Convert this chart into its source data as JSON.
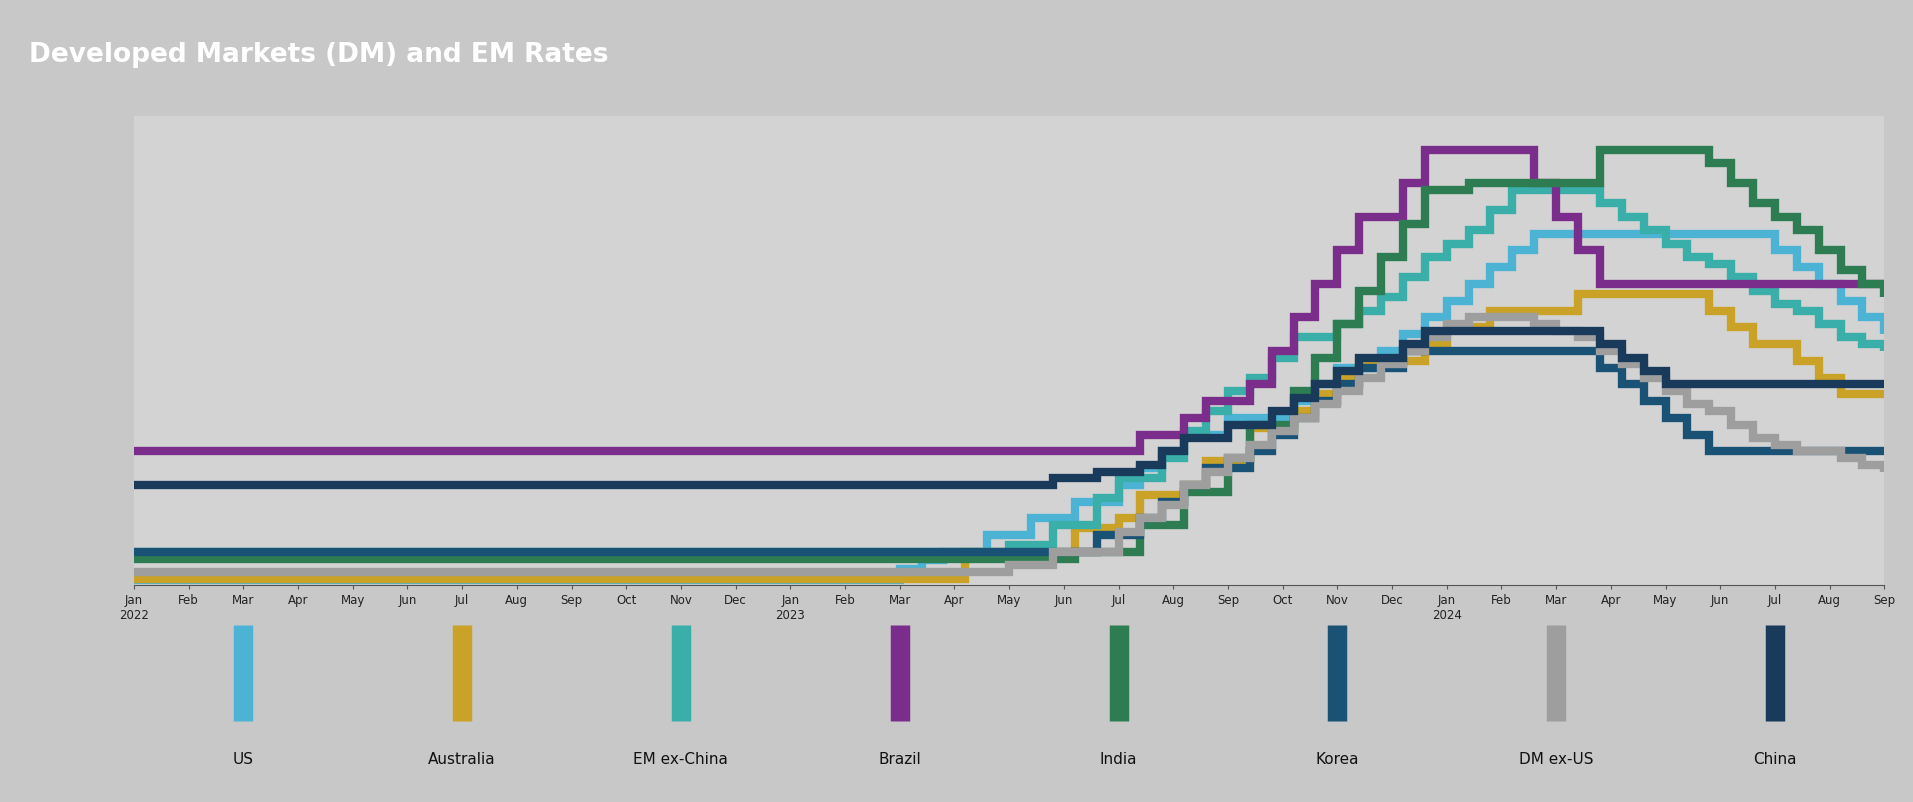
{
  "title": "Developed Markets (DM) and EM Rates",
  "bg_color": "#d3d3d3",
  "title_bg_color": "#1c1c1c",
  "title_color": "#ffffff",
  "fig_bg": "#c8c8c8",
  "series": [
    {
      "label": "US",
      "color": "#4db3d4",
      "linewidth": 6,
      "data_y": [
        0.08,
        0.08,
        0.08,
        0.08,
        0.08,
        0.08,
        0.08,
        0.08,
        0.08,
        0.08,
        0.08,
        0.08,
        0.08,
        0.08,
        0.08,
        0.08,
        0.08,
        0.08,
        0.08,
        0.08,
        0.08,
        0.08,
        0.08,
        0.08,
        0.08,
        0.08,
        0.08,
        0.08,
        0.08,
        0.08,
        0.08,
        0.08,
        0.08,
        0.08,
        0.08,
        0.25,
        0.38,
        0.5,
        0.5,
        0.75,
        0.75,
        1.0,
        1.0,
        1.25,
        1.25,
        1.5,
        1.75,
        2.0,
        2.25,
        2.25,
        2.5,
        2.5,
        2.5,
        2.75,
        3.0,
        3.25,
        3.25,
        3.5,
        3.75,
        4.0,
        4.25,
        4.5,
        4.75,
        5.0,
        5.25,
        5.25,
        5.25,
        5.25,
        5.25,
        5.25,
        5.25,
        5.25,
        5.25,
        5.25,
        5.25,
        5.0,
        4.75,
        4.5,
        4.25,
        4.0,
        3.75
      ]
    },
    {
      "label": "Australia",
      "color": "#c9a227",
      "linewidth": 6,
      "data_y": [
        0.1,
        0.1,
        0.1,
        0.1,
        0.1,
        0.1,
        0.1,
        0.1,
        0.1,
        0.1,
        0.1,
        0.1,
        0.1,
        0.1,
        0.1,
        0.1,
        0.1,
        0.1,
        0.1,
        0.1,
        0.1,
        0.1,
        0.1,
        0.1,
        0.1,
        0.1,
        0.1,
        0.1,
        0.1,
        0.1,
        0.1,
        0.1,
        0.1,
        0.1,
        0.1,
        0.1,
        0.1,
        0.1,
        0.5,
        0.5,
        0.5,
        0.5,
        0.5,
        0.85,
        0.85,
        1.0,
        1.35,
        1.35,
        1.5,
        1.85,
        1.85,
        2.35,
        2.35,
        2.6,
        2.85,
        3.1,
        3.35,
        3.35,
        3.35,
        3.6,
        3.85,
        3.85,
        4.1,
        4.1,
        4.1,
        4.1,
        4.35,
        4.35,
        4.35,
        4.35,
        4.35,
        4.35,
        4.1,
        3.85,
        3.6,
        3.6,
        3.35,
        3.1,
        2.85,
        2.85,
        2.85
      ]
    },
    {
      "label": "EM ex-China",
      "color": "#3aafa9",
      "linewidth": 6,
      "data_y": [
        0.5,
        0.5,
        0.5,
        0.5,
        0.5,
        0.5,
        0.5,
        0.5,
        0.5,
        0.5,
        0.5,
        0.5,
        0.5,
        0.5,
        0.5,
        0.5,
        0.5,
        0.5,
        0.5,
        0.5,
        0.5,
        0.5,
        0.5,
        0.5,
        0.5,
        0.5,
        0.5,
        0.5,
        0.5,
        0.5,
        0.5,
        0.5,
        0.5,
        0.5,
        0.5,
        0.5,
        0.5,
        0.5,
        0.5,
        0.5,
        0.6,
        0.6,
        0.9,
        0.9,
        1.3,
        1.6,
        1.6,
        1.9,
        2.3,
        2.6,
        2.9,
        3.1,
        3.4,
        3.7,
        3.7,
        3.9,
        4.1,
        4.3,
        4.6,
        4.9,
        5.1,
        5.3,
        5.6,
        5.9,
        5.9,
        5.9,
        5.9,
        5.7,
        5.5,
        5.3,
        5.1,
        4.9,
        4.8,
        4.6,
        4.4,
        4.2,
        4.1,
        3.9,
        3.7,
        3.6,
        3.5
      ]
    },
    {
      "label": "Brazil",
      "color": "#7b2d8b",
      "linewidth": 6,
      "data_y": [
        2.0,
        2.0,
        2.0,
        2.0,
        2.0,
        2.0,
        2.0,
        2.0,
        2.0,
        2.0,
        2.0,
        2.0,
        2.0,
        2.0,
        2.0,
        2.0,
        2.0,
        2.0,
        2.0,
        2.0,
        2.0,
        2.0,
        2.0,
        2.0,
        2.0,
        2.0,
        2.0,
        2.0,
        2.0,
        2.0,
        2.0,
        2.0,
        2.0,
        2.0,
        2.0,
        2.0,
        2.0,
        2.0,
        2.0,
        2.0,
        2.0,
        2.0,
        2.0,
        2.0,
        2.0,
        2.0,
        2.25,
        2.25,
        2.5,
        2.75,
        2.75,
        3.0,
        3.5,
        4.0,
        4.5,
        5.0,
        5.5,
        5.5,
        6.0,
        6.5,
        6.5,
        6.5,
        6.5,
        6.5,
        6.0,
        5.5,
        5.0,
        4.5,
        4.5,
        4.5,
        4.5,
        4.5,
        4.5,
        4.5,
        4.5,
        4.5,
        4.5,
        4.5,
        4.5,
        4.5,
        4.5
      ]
    },
    {
      "label": "India",
      "color": "#2e7d52",
      "linewidth": 6,
      "data_y": [
        0.4,
        0.4,
        0.4,
        0.4,
        0.4,
        0.4,
        0.4,
        0.4,
        0.4,
        0.4,
        0.4,
        0.4,
        0.4,
        0.4,
        0.4,
        0.4,
        0.4,
        0.4,
        0.4,
        0.4,
        0.4,
        0.4,
        0.4,
        0.4,
        0.4,
        0.4,
        0.4,
        0.4,
        0.4,
        0.4,
        0.4,
        0.4,
        0.4,
        0.4,
        0.4,
        0.4,
        0.4,
        0.4,
        0.4,
        0.4,
        0.4,
        0.4,
        0.4,
        0.5,
        0.5,
        0.5,
        0.9,
        0.9,
        1.4,
        1.4,
        1.9,
        2.4,
        2.4,
        2.9,
        3.4,
        3.9,
        4.4,
        4.9,
        5.4,
        5.9,
        5.9,
        6.0,
        6.0,
        6.0,
        6.0,
        6.0,
        6.0,
        6.5,
        6.5,
        6.5,
        6.5,
        6.5,
        6.3,
        6.0,
        5.7,
        5.5,
        5.3,
        5.0,
        4.7,
        4.5,
        4.3
      ]
    },
    {
      "label": "Korea",
      "color": "#1a5276",
      "linewidth": 6,
      "data_y": [
        0.5,
        0.5,
        0.5,
        0.5,
        0.5,
        0.5,
        0.5,
        0.5,
        0.5,
        0.5,
        0.5,
        0.5,
        0.5,
        0.5,
        0.5,
        0.5,
        0.5,
        0.5,
        0.5,
        0.5,
        0.5,
        0.5,
        0.5,
        0.5,
        0.5,
        0.5,
        0.5,
        0.5,
        0.5,
        0.5,
        0.5,
        0.5,
        0.5,
        0.5,
        0.5,
        0.5,
        0.5,
        0.5,
        0.5,
        0.5,
        0.5,
        0.5,
        0.5,
        0.5,
        0.75,
        0.75,
        1.0,
        1.25,
        1.5,
        1.75,
        1.75,
        2.0,
        2.25,
        2.5,
        2.75,
        3.0,
        3.25,
        3.25,
        3.5,
        3.5,
        3.5,
        3.5,
        3.5,
        3.5,
        3.5,
        3.5,
        3.5,
        3.25,
        3.0,
        2.75,
        2.5,
        2.25,
        2.0,
        2.0,
        2.0,
        2.0,
        2.0,
        2.0,
        2.0,
        2.0,
        2.0
      ]
    },
    {
      "label": "DM ex-US",
      "color": "#9e9e9e",
      "linewidth": 6,
      "data_y": [
        0.2,
        0.2,
        0.2,
        0.2,
        0.2,
        0.2,
        0.2,
        0.2,
        0.2,
        0.2,
        0.2,
        0.2,
        0.2,
        0.2,
        0.2,
        0.2,
        0.2,
        0.2,
        0.2,
        0.2,
        0.2,
        0.2,
        0.2,
        0.2,
        0.2,
        0.2,
        0.2,
        0.2,
        0.2,
        0.2,
        0.2,
        0.2,
        0.2,
        0.2,
        0.2,
        0.2,
        0.2,
        0.2,
        0.2,
        0.2,
        0.3,
        0.3,
        0.5,
        0.5,
        0.5,
        0.8,
        1.0,
        1.2,
        1.5,
        1.7,
        1.9,
        2.1,
        2.3,
        2.5,
        2.7,
        2.9,
        3.1,
        3.3,
        3.5,
        3.7,
        3.9,
        4.0,
        4.0,
        4.0,
        3.9,
        3.8,
        3.7,
        3.5,
        3.3,
        3.1,
        2.9,
        2.7,
        2.6,
        2.4,
        2.2,
        2.1,
        2.0,
        2.0,
        1.9,
        1.8,
        1.7
      ]
    },
    {
      "label": "China",
      "color": "#1a3a5c",
      "linewidth": 6,
      "data_y": [
        1.5,
        1.5,
        1.5,
        1.5,
        1.5,
        1.5,
        1.5,
        1.5,
        1.5,
        1.5,
        1.5,
        1.5,
        1.5,
        1.5,
        1.5,
        1.5,
        1.5,
        1.5,
        1.5,
        1.5,
        1.5,
        1.5,
        1.5,
        1.5,
        1.5,
        1.5,
        1.5,
        1.5,
        1.5,
        1.5,
        1.5,
        1.5,
        1.5,
        1.5,
        1.5,
        1.5,
        1.5,
        1.5,
        1.5,
        1.5,
        1.5,
        1.5,
        1.6,
        1.6,
        1.7,
        1.7,
        1.8,
        2.0,
        2.2,
        2.2,
        2.4,
        2.4,
        2.6,
        2.8,
        3.0,
        3.2,
        3.4,
        3.4,
        3.6,
        3.8,
        3.8,
        3.8,
        3.8,
        3.8,
        3.8,
        3.8,
        3.8,
        3.6,
        3.4,
        3.2,
        3.0,
        3.0,
        3.0,
        3.0,
        3.0,
        3.0,
        3.0,
        3.0,
        3.0,
        3.0,
        3.0
      ]
    }
  ],
  "legend_items": [
    {
      "label": "US",
      "color": "#4db3d4"
    },
    {
      "label": "Australia",
      "color": "#c9a227"
    },
    {
      "label": "EM ex-China",
      "color": "#3aafa9"
    },
    {
      "label": "Brazil",
      "color": "#7b2d8b"
    },
    {
      "label": "India",
      "color": "#2e7d52"
    },
    {
      "label": "Korea",
      "color": "#1a5276"
    },
    {
      "label": "DM ex-US",
      "color": "#9e9e9e"
    },
    {
      "label": "China",
      "color": "#1a3a5c"
    }
  ],
  "months": [
    "Jan",
    "Feb",
    "Mar",
    "Apr",
    "May",
    "Jun",
    "Jul",
    "Aug",
    "Sep",
    "Oct",
    "Nov",
    "Dec"
  ],
  "start_year": 2022,
  "num_points": 81,
  "num_months": 33
}
